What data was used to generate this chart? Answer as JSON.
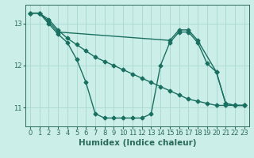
{
  "xlabel": "Humidex (Indice chaleur)",
  "bg_color": "#cceee8",
  "line_color": "#1a7060",
  "xlim": [
    -0.5,
    23.5
  ],
  "ylim": [
    10.55,
    13.45
  ],
  "yticks": [
    11,
    12,
    13
  ],
  "xticks": [
    0,
    1,
    2,
    3,
    4,
    5,
    6,
    7,
    8,
    9,
    10,
    11,
    12,
    13,
    14,
    15,
    16,
    17,
    18,
    19,
    20,
    21,
    22,
    23
  ],
  "line1_x": [
    0,
    1,
    2,
    3,
    4,
    5,
    6,
    7,
    8,
    9,
    10,
    11,
    12,
    13,
    14,
    15,
    16,
    17,
    18,
    19,
    20,
    21,
    22,
    23
  ],
  "line1_y": [
    13.25,
    13.25,
    13.1,
    12.85,
    12.65,
    12.5,
    12.35,
    12.2,
    12.1,
    12.0,
    11.9,
    11.8,
    11.7,
    11.6,
    11.5,
    11.4,
    11.3,
    11.2,
    11.15,
    11.1,
    11.05,
    11.05,
    11.05,
    11.05
  ],
  "line2_x": [
    0,
    1,
    2,
    3,
    4,
    5,
    6,
    7,
    8,
    9,
    10,
    11,
    12,
    13,
    14,
    15,
    16,
    17,
    18,
    19,
    20,
    21,
    22,
    23
  ],
  "line2_y": [
    13.25,
    13.25,
    13.0,
    12.75,
    12.55,
    12.15,
    11.6,
    10.85,
    10.75,
    10.75,
    10.75,
    10.75,
    10.75,
    10.85,
    12.0,
    12.55,
    12.8,
    12.8,
    12.55,
    12.05,
    11.85,
    11.1,
    11.05,
    11.05
  ],
  "line3_x": [
    0,
    1,
    2,
    3,
    15,
    16,
    17,
    18,
    20,
    21,
    22,
    23
  ],
  "line3_y": [
    13.25,
    13.25,
    13.05,
    12.8,
    12.6,
    12.85,
    12.85,
    12.6,
    11.85,
    11.1,
    11.05,
    11.05
  ],
  "grid_color": "#a8d8d0",
  "markersize": 2.5,
  "linewidth": 1.0,
  "font_color": "#2a6a5a",
  "tick_fontsize": 6,
  "label_fontsize": 7.5
}
